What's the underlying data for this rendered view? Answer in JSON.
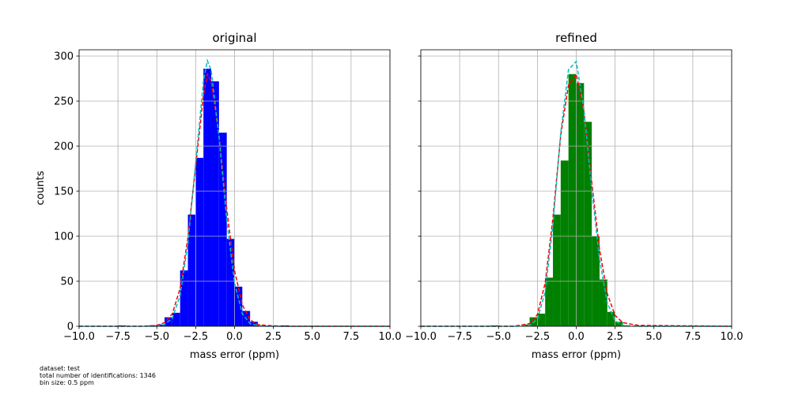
{
  "colors": {
    "bar_original": "#0000ff",
    "bar_refined": "#008000",
    "fit_a": "#ff0000",
    "fit_b": "#00bfbf",
    "grid": "#b0b0b0"
  },
  "notes": {
    "dataset": "dataset: test",
    "total": "total number of identifications: 1346",
    "bin_size": "bin size: 0.5 ppm"
  },
  "chart_data": [
    {
      "type": "bar",
      "title": "original",
      "xlabel": "mass error (ppm)",
      "ylabel": "counts",
      "xlim": [
        -10,
        10
      ],
      "ylim": [
        0,
        307
      ],
      "xticks": [
        -10,
        -7.5,
        -5,
        -2.5,
        0,
        2.5,
        5,
        7.5,
        10
      ],
      "xtick_labels": [
        "−10.0",
        "−7.5",
        "−5.0",
        "−2.5",
        "0.0",
        "2.5",
        "5.0",
        "7.5",
        "10.0"
      ],
      "yticks": [
        0,
        50,
        100,
        150,
        200,
        250,
        300
      ],
      "ytick_labels": [
        "0",
        "50",
        "100",
        "150",
        "200",
        "250",
        "300"
      ],
      "grid": true,
      "bin_width": 0.5,
      "bins": [
        {
          "x": -7.5,
          "y": 1
        },
        {
          "x": -5.5,
          "y": 1
        },
        {
          "x": -5.0,
          "y": 2
        },
        {
          "x": -4.5,
          "y": 10
        },
        {
          "x": -4.0,
          "y": 15
        },
        {
          "x": -3.5,
          "y": 62
        },
        {
          "x": -3.0,
          "y": 124
        },
        {
          "x": -2.5,
          "y": 187
        },
        {
          "x": -2.0,
          "y": 286
        },
        {
          "x": -1.5,
          "y": 272
        },
        {
          "x": -1.0,
          "y": 215
        },
        {
          "x": -0.5,
          "y": 97
        },
        {
          "x": 0.0,
          "y": 44
        },
        {
          "x": 0.5,
          "y": 17
        },
        {
          "x": 1.0,
          "y": 5
        },
        {
          "x": 1.5,
          "y": 1
        },
        {
          "x": 3.0,
          "y": 1
        }
      ],
      "fit_lines": [
        {
          "style": "red-dashed",
          "x": [
            -10,
            -6,
            -5,
            -4.5,
            -4,
            -3.5,
            -3,
            -2.5,
            -2,
            -1.75,
            -1.5,
            -1,
            -0.5,
            0,
            0.5,
            1,
            1.5,
            2,
            3,
            10
          ],
          "y": [
            0,
            0,
            1,
            4,
            14,
            42,
            98,
            178,
            256,
            280,
            272,
            212,
            130,
            62,
            24,
            7,
            2,
            1,
            0,
            0
          ]
        },
        {
          "style": "cyan-dashed",
          "x": [
            -10,
            -6,
            -5,
            -4.5,
            -4,
            -3.5,
            -3,
            -2.5,
            -2,
            -1.75,
            -1.5,
            -1,
            -0.5,
            0,
            0.5,
            1,
            1.5,
            2,
            3,
            10
          ],
          "y": [
            0,
            0,
            0,
            2,
            9,
            34,
            92,
            182,
            272,
            295,
            284,
            210,
            118,
            48,
            14,
            3,
            1,
            0,
            0,
            0
          ]
        }
      ]
    },
    {
      "type": "bar",
      "title": "refined",
      "xlabel": "mass error (ppm)",
      "ylabel": "",
      "xlim": [
        -10,
        10
      ],
      "ylim": [
        0,
        307
      ],
      "xticks": [
        -10,
        -7.5,
        -5,
        -2.5,
        0,
        2.5,
        5,
        7.5,
        10
      ],
      "xtick_labels": [
        "−10.0",
        "−7.5",
        "−5.0",
        "−2.5",
        "0.0",
        "2.5",
        "5.0",
        "7.5",
        "10.0"
      ],
      "yticks": [
        0,
        50,
        100,
        150,
        200,
        250,
        300
      ],
      "ytick_labels": [],
      "grid": true,
      "bin_width": 0.5,
      "bins": [
        {
          "x": -5.5,
          "y": 1
        },
        {
          "x": -3.5,
          "y": 2
        },
        {
          "x": -3.0,
          "y": 10
        },
        {
          "x": -2.5,
          "y": 14
        },
        {
          "x": -2.0,
          "y": 54
        },
        {
          "x": -1.5,
          "y": 124
        },
        {
          "x": -1.0,
          "y": 184
        },
        {
          "x": -0.5,
          "y": 280
        },
        {
          "x": 0.0,
          "y": 270
        },
        {
          "x": 0.5,
          "y": 227
        },
        {
          "x": 1.0,
          "y": 100
        },
        {
          "x": 1.5,
          "y": 52
        },
        {
          "x": 2.0,
          "y": 16
        },
        {
          "x": 2.5,
          "y": 5
        },
        {
          "x": 3.0,
          "y": 1
        }
      ],
      "fit_lines": [
        {
          "style": "red-dashed",
          "x": [
            -10,
            -4,
            -3,
            -2.5,
            -2,
            -1.5,
            -1,
            -0.5,
            0,
            0.5,
            1,
            1.5,
            2,
            2.5,
            3,
            4,
            10
          ],
          "y": [
            0,
            0,
            3,
            13,
            48,
            120,
            212,
            268,
            280,
            238,
            160,
            85,
            36,
            12,
            4,
            1,
            0
          ]
        },
        {
          "style": "cyan-dashed",
          "x": [
            -10,
            -4,
            -3,
            -2.5,
            -2,
            -1.5,
            -1,
            -0.5,
            0,
            0.5,
            1,
            1.5,
            2,
            2.5,
            3,
            4,
            10
          ],
          "y": [
            0,
            0,
            1,
            8,
            38,
            112,
            215,
            285,
            294,
            240,
            152,
            74,
            26,
            6,
            1,
            0,
            0
          ]
        }
      ]
    }
  ]
}
